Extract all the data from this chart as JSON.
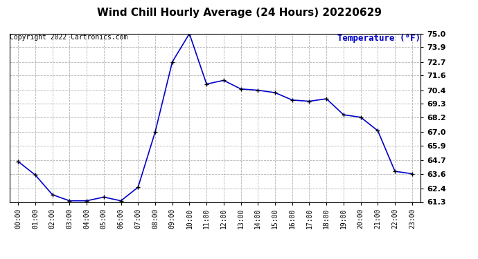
{
  "title": "Wind Chill Hourly Average (24 Hours) 20220629",
  "ylabel": "Temperature (°F)",
  "copyright_text": "Copyright 2022 Cartronics.com",
  "hours": [
    "00:00",
    "01:00",
    "02:00",
    "03:00",
    "04:00",
    "05:00",
    "06:00",
    "07:00",
    "08:00",
    "09:00",
    "10:00",
    "11:00",
    "12:00",
    "13:00",
    "14:00",
    "15:00",
    "16:00",
    "17:00",
    "18:00",
    "19:00",
    "20:00",
    "21:00",
    "22:00",
    "23:00"
  ],
  "values": [
    64.6,
    63.5,
    61.9,
    61.4,
    61.4,
    61.7,
    61.4,
    62.5,
    67.0,
    72.7,
    75.0,
    70.9,
    71.2,
    70.5,
    70.4,
    70.2,
    69.6,
    69.5,
    69.7,
    68.4,
    68.2,
    67.1,
    63.8,
    63.6
  ],
  "ylim_min": 61.3,
  "ylim_max": 75.0,
  "line_color": "#0000cc",
  "marker": "+",
  "marker_color": "#000000",
  "marker_size": 5,
  "grid_color": "#aaaaaa",
  "background_color": "#ffffff",
  "title_fontsize": 11,
  "ylabel_fontsize": 9,
  "ylabel_color": "#0000cc",
  "copyright_fontsize": 7,
  "copyright_color": "#000000",
  "ytick_fontsize": 8,
  "xtick_fontsize": 7,
  "yticks": [
    61.3,
    62.4,
    63.6,
    64.7,
    65.9,
    67.0,
    68.2,
    69.3,
    70.4,
    71.6,
    72.7,
    73.9,
    75.0
  ]
}
